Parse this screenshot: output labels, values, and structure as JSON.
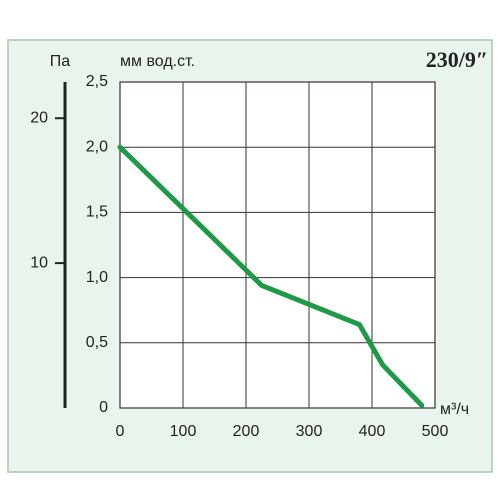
{
  "chart_data": {
    "type": "line",
    "title": "230/9″",
    "y_label": "мм вод.ст.",
    "y2_label": "Па",
    "x_label": "м³/ч",
    "x": [
      0,
      225,
      380,
      417,
      479
    ],
    "series": [
      {
        "color": "#1e9a46",
        "values": [
          2.0,
          0.94,
          0.64,
          0.33,
          0.02
        ]
      }
    ],
    "xlim": [
      0,
      500
    ],
    "xticks": [
      0,
      100,
      200,
      300,
      400,
      500
    ],
    "ylim": [
      0,
      2.5
    ],
    "yticks": [
      0,
      {
        "value": 0.5,
        "label": "0,5"
      },
      {
        "value": 1.0,
        "label": "1,0"
      },
      {
        "value": 1.5,
        "label": "1,5"
      },
      {
        "value": 2.0,
        "label": "2,0"
      },
      {
        "value": 2.5,
        "label": "2,5"
      }
    ],
    "y2lim": [
      0,
      22.5
    ],
    "y2ticks": [
      10,
      20
    ],
    "grid": true
  }
}
